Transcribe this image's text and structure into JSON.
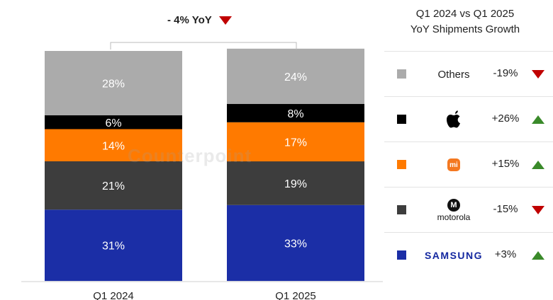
{
  "chart_data": {
    "type": "bar",
    "stacked": true,
    "categories": [
      "Q1 2024",
      "Q1 2025"
    ],
    "series": [
      {
        "name": "Samsung",
        "values": [
          31,
          33
        ],
        "labels": [
          "31%",
          "33%"
        ],
        "color": "#1b2ea6",
        "text_color": "#ffffff"
      },
      {
        "name": "Motorola",
        "values": [
          21,
          19
        ],
        "labels": [
          "21%",
          "19%"
        ],
        "color": "#3d3d3d",
        "text_color": "#ffffff"
      },
      {
        "name": "Xiaomi",
        "values": [
          14,
          17
        ],
        "labels": [
          "14%",
          "17%"
        ],
        "color": "#ff7a00",
        "text_color": "#ffffff"
      },
      {
        "name": "Apple",
        "values": [
          6,
          8
        ],
        "labels": [
          "6%",
          "8%"
        ],
        "color": "#000000",
        "text_color": "#ffffff"
      },
      {
        "name": "Others",
        "values": [
          28,
          24
        ],
        "labels": [
          "28%",
          "24%"
        ],
        "color": "#ababab",
        "text_color": "#ffffff"
      }
    ],
    "ylim": [
      0,
      100
    ],
    "annotation": "- 4% YoY"
  },
  "watermark": "Counterpoint",
  "panel": {
    "title_line1": "Q1 2024 vs Q1 2025",
    "title_line2": "YoY Shipments  Growth",
    "rows": [
      {
        "brand": "Others",
        "growth": "-19%",
        "direction": "down",
        "color": "#ababab",
        "icon": "text"
      },
      {
        "brand": "Apple",
        "growth": "+26%",
        "direction": "up",
        "color": "#000000",
        "icon": "apple-icon"
      },
      {
        "brand": "Xiaomi",
        "logo_text": "mi",
        "growth": "+15%",
        "direction": "up",
        "color": "#ff7a00",
        "icon": "xiaomi-logo"
      },
      {
        "brand": "Motorola",
        "logo_text": "motorola",
        "logo_mark": "M",
        "growth": "-15%",
        "direction": "down",
        "color": "#3d3d3d",
        "icon": "motorola-logo"
      },
      {
        "brand": "Samsung",
        "logo_text": "SAMSUNG",
        "growth": "+3%",
        "direction": "up",
        "color": "#1b2ea6",
        "icon": "samsung-logo"
      }
    ]
  }
}
